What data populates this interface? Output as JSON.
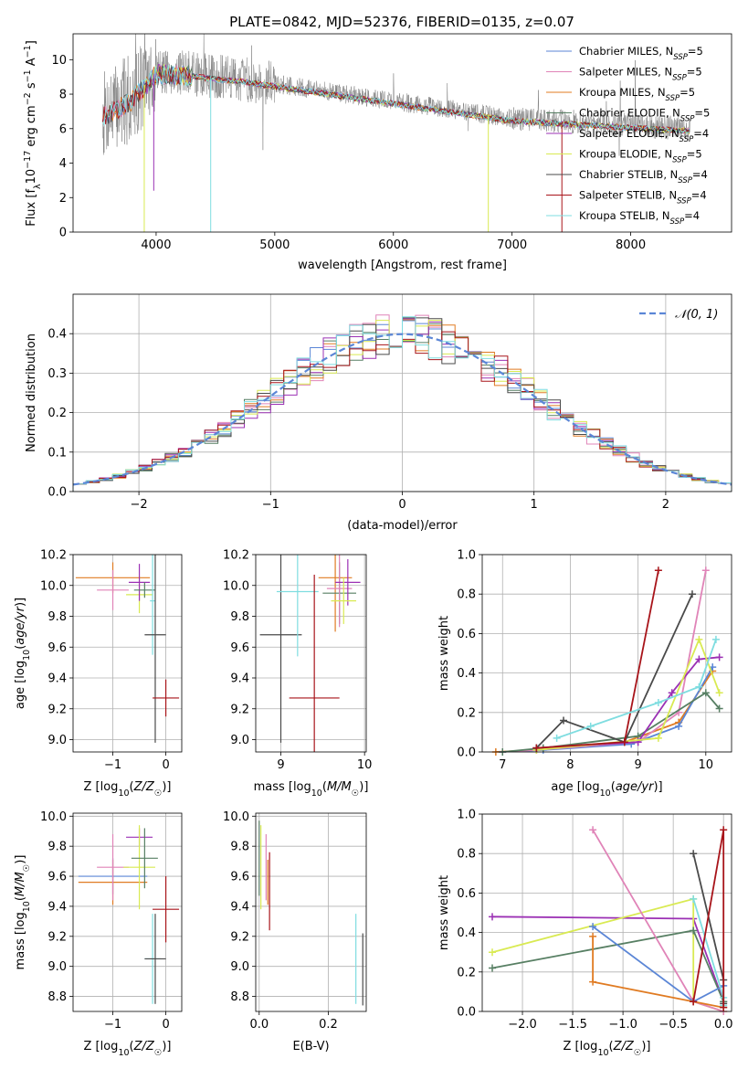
{
  "figure": {
    "title": "PLATE=0842, MJD=52376, FIBERID=0135, z=0.07"
  },
  "model_colors": {
    "Chabrier MILES": "#5b86d6",
    "Salpeter MILES": "#e084b8",
    "Kroupa MILES": "#e07b22",
    "Chabrier ELODIE": "#577f63",
    "Salpeter ELODIE": "#9b30b4",
    "Kroupa ELODIE": "#d9ea52",
    "Chabrier STELIB": "#4a4a4a",
    "Salpeter STELIB": "#a8141a",
    "Kroupa STELIB": "#7fdde0"
  },
  "chart_data": [
    {
      "type": "line",
      "id": "spectrum",
      "title": "PLATE=0842, MJD=52376, FIBERID=0135, z=0.07",
      "xlabel": "wavelength [Angstrom, rest frame]",
      "ylabel": "Flux [f_λ10^-17 erg cm^-2 s^-1 A^-1]",
      "xlim": [
        3300,
        8850
      ],
      "ylim": [
        0,
        11.5
      ],
      "xticks": [
        "4000",
        "5000",
        "6000",
        "7000",
        "8000"
      ],
      "yticks": [
        "0",
        "2",
        "4",
        "6",
        "8",
        "10"
      ],
      "grid": false,
      "legend_position": "top-right",
      "data_color": "#808080",
      "continuum": {
        "x": [
          3550,
          3800,
          4000,
          4300,
          4500,
          4700,
          5000,
          5500,
          6000,
          6500,
          7000,
          7500,
          8000,
          8500
        ],
        "y": [
          6.8,
          7.8,
          9.3,
          9.2,
          9.0,
          8.9,
          8.6,
          8.1,
          7.6,
          7.1,
          6.6,
          6.4,
          6.2,
          6.0
        ]
      },
      "legend": [
        {
          "name": "Chabrier MILES, N_SSP=5",
          "color": "#5b86d6"
        },
        {
          "name": "Salpeter MILES, N_SSP=5",
          "color": "#e084b8"
        },
        {
          "name": "Kroupa MILES, N_SSP=5",
          "color": "#e07b22"
        },
        {
          "name": "Chabrier ELODIE, N_SSP=5",
          "color": "#577f63"
        },
        {
          "name": "Salpeter ELODIE, N_SSP=4",
          "color": "#9b30b4"
        },
        {
          "name": "Kroupa ELODIE, N_SSP=5",
          "color": "#d9ea52"
        },
        {
          "name": "Chabrier STELIB, N_SSP=4",
          "color": "#4a4a4a"
        },
        {
          "name": "Salpeter STELIB, N_SSP=4",
          "color": "#a8141a"
        },
        {
          "name": "Kroupa STELIB, N_SSP=4",
          "color": "#7fdde0"
        }
      ]
    },
    {
      "type": "histogram",
      "id": "residuals",
      "xlabel": "(data-model)/error",
      "ylabel": "Normed distribution",
      "xlim": [
        -2.5,
        2.5
      ],
      "ylim": [
        0,
        0.5
      ],
      "xticks": [
        "−2",
        "−1",
        "0",
        "1",
        "2"
      ],
      "yticks": [
        "0.0",
        "0.1",
        "0.2",
        "0.3",
        "0.4"
      ],
      "grid": true,
      "legend_position": "top-right",
      "legend": [
        {
          "name": "𝒩(0, 1)",
          "color": "#5b86d6",
          "style": "dashed"
        }
      ],
      "gaussian": {
        "mean": 0,
        "sigma": 1
      }
    },
    {
      "type": "errorbar",
      "id": "age-vs-Z",
      "xlabel": "Z [log10(Z/Z☉)]",
      "ylabel": "age [log10(age/yr)]",
      "xlim": [
        -1.75,
        0.3
      ],
      "ylim": [
        8.92,
        10.2
      ],
      "xticks": [
        {
          "v": -1,
          "t": "−1"
        },
        {
          "v": 0,
          "t": "0"
        }
      ],
      "yticks": [
        "9.0",
        "9.2",
        "9.4",
        "9.6",
        "9.8",
        "10.0",
        "10.2"
      ],
      "grid": true,
      "points": [
        {
          "model": "Kroupa MILES",
          "x": -1.0,
          "y": 10.05,
          "xerr": 0.7,
          "yerr": 0.1
        },
        {
          "model": "Salpeter MILES",
          "x": -1.0,
          "y": 9.97,
          "xerr": 0.3,
          "yerr": 0.13
        },
        {
          "model": "Kroupa ELODIE",
          "x": -0.5,
          "y": 9.94,
          "xerr": 0.25,
          "yerr": 0.12
        },
        {
          "model": "Salpeter ELODIE",
          "x": -0.5,
          "y": 10.02,
          "xerr": 0.2,
          "yerr": 0.12
        },
        {
          "model": "Chabrier ELODIE",
          "x": -0.4,
          "y": 9.97,
          "xerr": 0.2,
          "yerr": 0.05
        },
        {
          "model": "Kroupa STELIB",
          "x": -0.25,
          "y": 9.9,
          "xerr": 0.05,
          "yerr": 0.35
        },
        {
          "model": "Chabrier STELIB",
          "x": -0.2,
          "y": 9.68,
          "xerr": 0.2,
          "yerr": 0.7
        },
        {
          "model": "Salpeter STELIB",
          "x": 0.0,
          "y": 9.27,
          "xerr": 0.25,
          "yerr": 0.12
        }
      ]
    },
    {
      "type": "errorbar",
      "id": "age-vs-mass",
      "xlabel": "mass [log10(M/M☉)]",
      "ylabel": "",
      "xlim": [
        8.7,
        10.02
      ],
      "ylim": [
        8.92,
        10.2
      ],
      "xticks": [
        {
          "v": 9,
          "t": "9"
        },
        {
          "v": 10,
          "t": "10"
        }
      ],
      "yticks": [
        "9.0",
        "9.2",
        "9.4",
        "9.6",
        "9.8",
        "10.0",
        "10.2"
      ],
      "grid": true,
      "points": [
        {
          "model": "Chabrier STELIB",
          "x": 9.0,
          "y": 9.68,
          "xerr": 0.25,
          "yerr": 0.7
        },
        {
          "model": "Kroupa STELIB",
          "x": 9.2,
          "y": 9.96,
          "xerr": 0.25,
          "yerr": 0.42
        },
        {
          "model": "Salpeter STELIB",
          "x": 9.4,
          "y": 9.27,
          "xerr": 0.3,
          "yerr": 0.8
        },
        {
          "model": "Kroupa MILES",
          "x": 9.65,
          "y": 10.05,
          "xerr": 0.2,
          "yerr": 0.35
        },
        {
          "model": "Chabrier ELODIE",
          "x": 9.7,
          "y": 9.95,
          "xerr": 0.2,
          "yerr": 0.2
        },
        {
          "model": "Salpeter MILES",
          "x": 9.7,
          "y": 9.98,
          "xerr": 0.15,
          "yerr": 0.25
        },
        {
          "model": "Salpeter ELODIE",
          "x": 9.8,
          "y": 10.02,
          "xerr": 0.15,
          "yerr": 0.15
        },
        {
          "model": "Kroupa ELODIE",
          "x": 9.75,
          "y": 9.9,
          "xerr": 0.15,
          "yerr": 0.15
        }
      ]
    },
    {
      "type": "line",
      "id": "weight-vs-age",
      "xlabel": "age [log10(age/yr)]",
      "ylabel": "mass weight",
      "xlim": [
        6.7,
        10.38
      ],
      "ylim": [
        0,
        1
      ],
      "xticks": [
        {
          "v": 7,
          "t": "7"
        },
        {
          "v": 8,
          "t": "8"
        },
        {
          "v": 9,
          "t": "9"
        },
        {
          "v": 10,
          "t": "10"
        }
      ],
      "yticks": [
        "0.0",
        "0.2",
        "0.4",
        "0.6",
        "0.8",
        "1.0"
      ],
      "grid": true,
      "series": [
        {
          "model": "Kroupa MILES",
          "x": [
            6.9,
            7.5,
            8.8,
            9.6,
            10.1
          ],
          "y": [
            0.0,
            0.01,
            0.05,
            0.15,
            0.41
          ]
        },
        {
          "model": "Chabrier MILES",
          "x": [
            7.0,
            7.6,
            8.9,
            9.6,
            10.1
          ],
          "y": [
            0.0,
            0.01,
            0.04,
            0.13,
            0.43
          ]
        },
        {
          "model": "Salpeter MILES",
          "x": [
            7.0,
            7.5,
            9.0,
            9.6,
            10.0
          ],
          "y": [
            0.0,
            0.01,
            0.05,
            0.2,
            0.92
          ]
        },
        {
          "model": "Chabrier ELODIE",
          "x": [
            7.0,
            7.6,
            9.0,
            10.0,
            10.2
          ],
          "y": [
            0.0,
            0.02,
            0.08,
            0.3,
            0.22
          ]
        },
        {
          "model": "Salpeter ELODIE",
          "x": [
            7.5,
            9.0,
            9.5,
            9.9,
            10.2
          ],
          "y": [
            0.02,
            0.05,
            0.3,
            0.47,
            0.48
          ]
        },
        {
          "model": "Kroupa ELODIE",
          "x": [
            7.5,
            9.3,
            9.9,
            10.2
          ],
          "y": [
            0.01,
            0.07,
            0.57,
            0.3
          ]
        },
        {
          "model": "Chabrier STELIB",
          "x": [
            7.5,
            7.9,
            8.8,
            9.8
          ],
          "y": [
            0.02,
            0.16,
            0.05,
            0.8
          ]
        },
        {
          "model": "Salpeter STELIB",
          "x": [
            7.5,
            8.8,
            9.3
          ],
          "y": [
            0.02,
            0.05,
            0.92
          ]
        },
        {
          "model": "Kroupa STELIB",
          "x": [
            7.8,
            8.3,
            9.3,
            9.9,
            10.15
          ],
          "y": [
            0.07,
            0.13,
            0.25,
            0.33,
            0.57
          ]
        }
      ]
    },
    {
      "type": "errorbar",
      "id": "mass-vs-Z",
      "xlabel": "Z [log10(Z/Z☉)]",
      "ylabel": "mass [log10(M/M☉)]",
      "xlim": [
        -1.75,
        0.3
      ],
      "ylim": [
        8.7,
        10.02
      ],
      "xticks": [
        {
          "v": -1,
          "t": "−1"
        },
        {
          "v": 0,
          "t": "0"
        }
      ],
      "yticks": [
        "8.8",
        "9.0",
        "9.2",
        "9.4",
        "9.6",
        "9.8",
        "10.0"
      ],
      "grid": true,
      "points": [
        {
          "model": "Chabrier MILES",
          "x": -1.0,
          "y": 9.6,
          "xerr": 0.65,
          "yerr": 0.12
        },
        {
          "model": "Kroupa MILES",
          "x": -1.0,
          "y": 9.56,
          "xerr": 0.65,
          "yerr": 0.15
        },
        {
          "model": "Salpeter MILES",
          "x": -1.0,
          "y": 9.66,
          "xerr": 0.3,
          "yerr": 0.22
        },
        {
          "model": "Salpeter ELODIE",
          "x": -0.5,
          "y": 9.86,
          "xerr": 0.25,
          "yerr": 0.06
        },
        {
          "model": "Kroupa ELODIE",
          "x": -0.5,
          "y": 9.66,
          "xerr": 0.3,
          "yerr": 0.28
        },
        {
          "model": "Chabrier ELODIE",
          "x": -0.4,
          "y": 9.72,
          "xerr": 0.25,
          "yerr": 0.2
        },
        {
          "model": "Salpeter STELIB",
          "x": 0.0,
          "y": 9.38,
          "xerr": 0.25,
          "yerr": 0.22
        },
        {
          "model": "Kroupa STELIB",
          "x": -0.25,
          "y": 9.05,
          "xerr": 0.15,
          "yerr": 0.3
        },
        {
          "model": "Chabrier STELIB",
          "x": -0.2,
          "y": 9.05,
          "xerr": 0.2,
          "yerr": 0.3
        }
      ]
    },
    {
      "type": "errorbar",
      "id": "mass-vs-ebv",
      "xlabel": "E(B-V)",
      "ylabel": "",
      "xlim": [
        -0.01,
        0.31
      ],
      "ylim": [
        8.7,
        10.02
      ],
      "xticks": [
        {
          "v": 0,
          "t": "0.0"
        },
        {
          "v": 0.2,
          "t": "0.2"
        }
      ],
      "yticks": [
        "8.8",
        "9.0",
        "9.2",
        "9.4",
        "9.6",
        "9.8",
        "10.0"
      ],
      "grid": true,
      "points": [
        {
          "model": "Chabrier ELODIE",
          "x": 0.0,
          "y": 9.72,
          "xerr": 0.0,
          "yerr": 0.25
        },
        {
          "model": "Kroupa ELODIE",
          "x": 0.005,
          "y": 9.66,
          "xerr": 0.0,
          "yerr": 0.28
        },
        {
          "model": "Salpeter MILES",
          "x": 0.02,
          "y": 9.66,
          "xerr": 0.0,
          "yerr": 0.22
        },
        {
          "model": "Kroupa MILES",
          "x": 0.025,
          "y": 9.56,
          "xerr": 0.0,
          "yerr": 0.15
        },
        {
          "model": "Salpeter STELIB",
          "x": 0.03,
          "y": 9.5,
          "xerr": 0.0,
          "yerr": 0.26
        },
        {
          "model": "Kroupa STELIB",
          "x": 0.28,
          "y": 9.05,
          "xerr": 0.0,
          "yerr": 0.3
        },
        {
          "model": "Chabrier STELIB",
          "x": 0.3,
          "y": 8.98,
          "xerr": 0.0,
          "yerr": 0.24
        }
      ]
    },
    {
      "type": "line",
      "id": "weight-vs-Z",
      "xlabel": "Z [log10(Z/Z☉)]",
      "ylabel": "mass weight",
      "xlim": [
        -2.4,
        0.08
      ],
      "ylim": [
        0,
        1
      ],
      "xticks": [
        {
          "v": -2.0,
          "t": "−2.0"
        },
        {
          "v": -1.5,
          "t": "−1.5"
        },
        {
          "v": -1.0,
          "t": "−1.0"
        },
        {
          "v": -0.5,
          "t": "−0.5"
        },
        {
          "v": 0.0,
          "t": "0.0"
        }
      ],
      "yticks": [
        "0.0",
        "0.2",
        "0.4",
        "0.6",
        "0.8",
        "1.0"
      ],
      "grid": true,
      "series": [
        {
          "model": "Salpeter ELODIE",
          "x": [
            -2.3,
            -0.3,
            0.0
          ],
          "y": [
            0.48,
            0.47,
            0.05
          ]
        },
        {
          "model": "Kroupa ELODIE",
          "x": [
            -2.3,
            -0.3,
            -0.3,
            0.0
          ],
          "y": [
            0.3,
            0.57,
            0.05,
            0.0
          ]
        },
        {
          "model": "Chabrier ELODIE",
          "x": [
            -2.3,
            -0.3,
            0.0
          ],
          "y": [
            0.22,
            0.41,
            0.05
          ]
        },
        {
          "model": "Salpeter MILES",
          "x": [
            -1.3,
            -0.3,
            0.0
          ],
          "y": [
            0.92,
            0.05,
            0.0
          ]
        },
        {
          "model": "Chabrier MILES",
          "x": [
            -1.3,
            -0.3,
            0.0
          ],
          "y": [
            0.43,
            0.05,
            0.13
          ]
        },
        {
          "model": "Kroupa MILES",
          "x": [
            -1.3,
            -1.3,
            -0.3,
            0.0
          ],
          "y": [
            0.38,
            0.15,
            0.05,
            0.02
          ]
        },
        {
          "model": "Kroupa STELIB",
          "x": [
            -0.3,
            0.0,
            0.0
          ],
          "y": [
            0.57,
            0.07,
            0.03
          ]
        },
        {
          "model": "Chabrier STELIB",
          "x": [
            -0.3,
            0.0,
            0.0
          ],
          "y": [
            0.8,
            0.16,
            0.04
          ]
        },
        {
          "model": "Salpeter STELIB",
          "x": [
            -0.3,
            0.0,
            0.0
          ],
          "y": [
            0.05,
            0.92,
            0.02
          ]
        }
      ]
    }
  ]
}
